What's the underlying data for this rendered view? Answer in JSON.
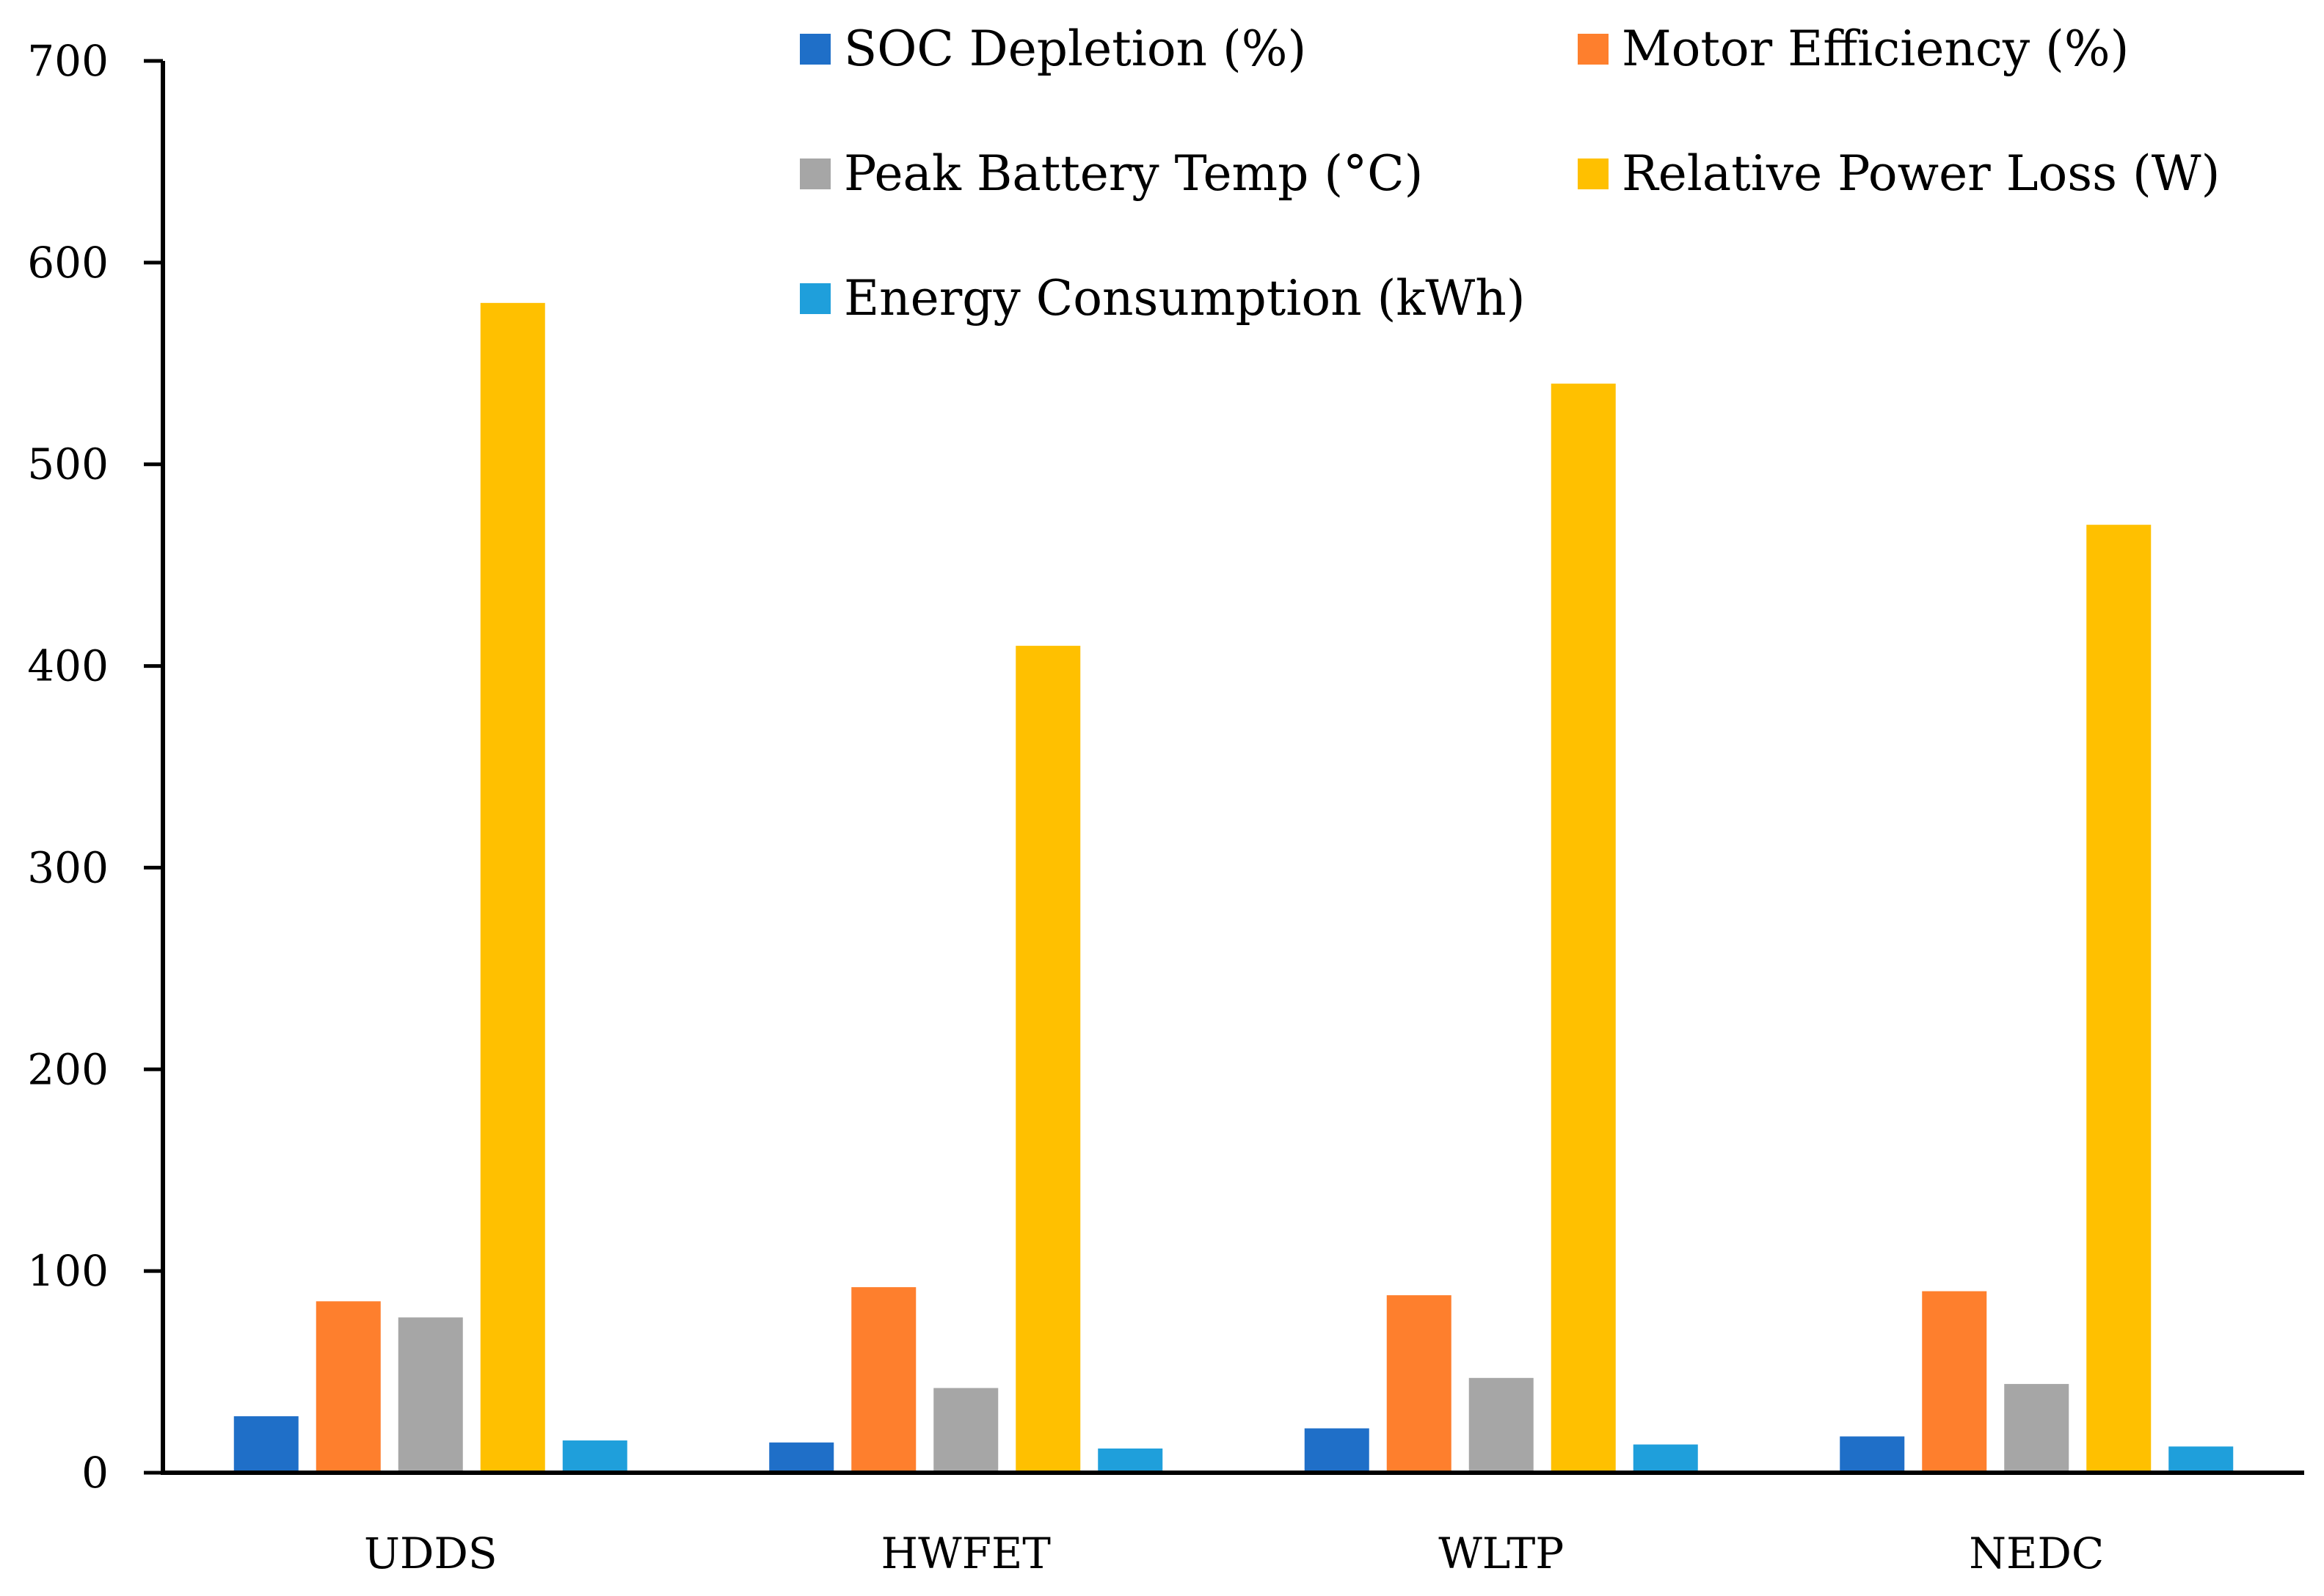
{
  "chart_data": {
    "type": "bar",
    "title": "",
    "xlabel": "",
    "ylabel": "",
    "ylim": [
      0,
      700
    ],
    "yticks": [
      0,
      100,
      200,
      300,
      400,
      500,
      600,
      700
    ],
    "grid": false,
    "legend_position": "top",
    "categories": [
      "UDDS",
      "HWFET",
      "WLTP",
      "NEDC"
    ],
    "series": [
      {
        "name": "SOC Depletion (%)",
        "color": "#1f6fc8",
        "values": [
          28,
          15,
          22,
          18
        ]
      },
      {
        "name": "Motor Efficiency (%)",
        "color": "#fe7f2d",
        "values": [
          85,
          92,
          88,
          90
        ]
      },
      {
        "name": "Peak Battery Temp (°C)",
        "color": "#a6a6a6",
        "values": [
          77,
          42,
          47,
          44
        ]
      },
      {
        "name": "Relative Power Loss (W)",
        "color": "#ffc000",
        "values": [
          580,
          410,
          540,
          470
        ]
      },
      {
        "name": "Energy Consumption (kWh)",
        "color": "#1f9fdb",
        "values": [
          16,
          12,
          14,
          13
        ]
      }
    ]
  }
}
